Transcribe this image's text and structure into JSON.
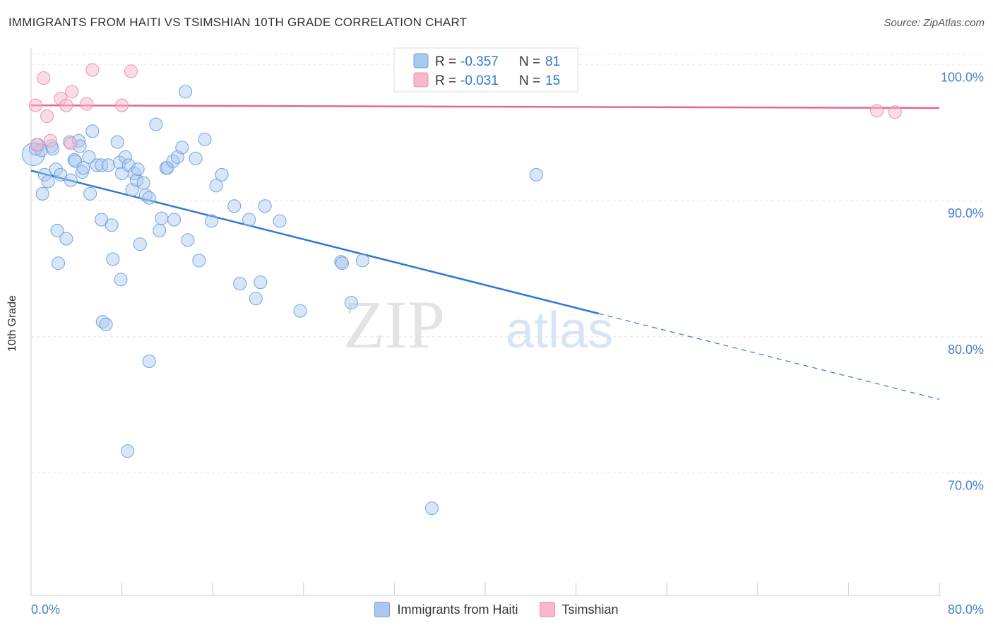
{
  "title": "IMMIGRANTS FROM HAITI VS TSIMSHIAN 10TH GRADE CORRELATION CHART",
  "source": "Source: ZipAtlas.com",
  "watermark": {
    "zip": "ZIP",
    "atlas": "atlas"
  },
  "legend": {
    "r_label": "R =",
    "n_label": "N =",
    "rows": [
      {
        "r": "-0.357",
        "n": "81",
        "color": "#a8c8f0"
      },
      {
        "r": "-0.031",
        "n": "15",
        "color": "#f7b8ca"
      }
    ]
  },
  "bottom_legend": [
    {
      "label": "Immigrants from Haiti",
      "color": "#a8c8f0"
    },
    {
      "label": "Tsimshian",
      "color": "#f7b8ca"
    }
  ],
  "chart_data": {
    "type": "scatter",
    "title": "IMMIGRANTS FROM HAITI VS TSIMSHIAN 10TH GRADE CORRELATION CHART",
    "xlabel": "",
    "ylabel": "10th Grade",
    "xlim": [
      0,
      80
    ],
    "ylim": [
      61,
      101
    ],
    "x_tick_labels": [
      "0.0%",
      "80.0%"
    ],
    "y_ticks": [
      70,
      80,
      90,
      100
    ],
    "y_tick_labels": [
      "70.0%",
      "80.0%",
      "90.0%",
      "100.0%"
    ],
    "grid": true,
    "colors": {
      "blue_point": "#a8c8f0",
      "blue_line": "#2f78d0",
      "pink_point": "#f7b8ca",
      "pink_line": "#e8668e",
      "tick_text": "#4a7fc8"
    },
    "series": [
      {
        "name": "Immigrants from Haiti",
        "points": [
          [
            0.2,
            93.4
          ],
          [
            0.4,
            93.8
          ],
          [
            0.6,
            94.1
          ],
          [
            0.9,
            93.7
          ],
          [
            1.2,
            91.9
          ],
          [
            1.0,
            90.5
          ],
          [
            1.5,
            91.4
          ],
          [
            1.8,
            94.0
          ],
          [
            1.9,
            93.8
          ],
          [
            2.2,
            92.3
          ],
          [
            2.6,
            91.9
          ],
          [
            2.3,
            87.8
          ],
          [
            2.4,
            85.4
          ],
          [
            3.1,
            87.2
          ],
          [
            3.5,
            91.5
          ],
          [
            3.4,
            94.3
          ],
          [
            3.8,
            93.0
          ],
          [
            3.9,
            92.9
          ],
          [
            4.2,
            94.4
          ],
          [
            4.3,
            94.0
          ],
          [
            4.5,
            92.1
          ],
          [
            4.6,
            92.4
          ],
          [
            5.1,
            93.2
          ],
          [
            5.2,
            90.5
          ],
          [
            5.4,
            95.1
          ],
          [
            5.8,
            92.6
          ],
          [
            6.2,
            92.6
          ],
          [
            6.2,
            88.6
          ],
          [
            6.3,
            81.1
          ],
          [
            6.6,
            80.9
          ],
          [
            6.8,
            92.6
          ],
          [
            7.1,
            88.2
          ],
          [
            7.2,
            85.7
          ],
          [
            7.6,
            94.3
          ],
          [
            7.8,
            92.8
          ],
          [
            7.9,
            84.2
          ],
          [
            8.0,
            92.0
          ],
          [
            8.3,
            93.2
          ],
          [
            8.5,
            71.6
          ],
          [
            8.6,
            92.6
          ],
          [
            8.9,
            90.8
          ],
          [
            9.1,
            92.0
          ],
          [
            9.3,
            91.5
          ],
          [
            9.4,
            92.3
          ],
          [
            9.6,
            86.8
          ],
          [
            9.9,
            91.3
          ],
          [
            10.1,
            90.4
          ],
          [
            10.4,
            90.2
          ],
          [
            10.4,
            78.2
          ],
          [
            11.0,
            95.6
          ],
          [
            11.3,
            87.8
          ],
          [
            11.5,
            88.7
          ],
          [
            11.9,
            92.4
          ],
          [
            12.0,
            92.4
          ],
          [
            12.5,
            92.9
          ],
          [
            12.6,
            88.6
          ],
          [
            12.9,
            93.2
          ],
          [
            13.3,
            93.9
          ],
          [
            13.6,
            98.0
          ],
          [
            13.8,
            87.1
          ],
          [
            14.5,
            93.1
          ],
          [
            14.8,
            85.6
          ],
          [
            15.3,
            94.5
          ],
          [
            15.9,
            88.5
          ],
          [
            16.3,
            91.1
          ],
          [
            16.8,
            91.9
          ],
          [
            17.9,
            89.6
          ],
          [
            18.4,
            83.9
          ],
          [
            19.2,
            88.6
          ],
          [
            19.8,
            82.8
          ],
          [
            20.2,
            84.0
          ],
          [
            20.6,
            89.6
          ],
          [
            21.9,
            88.5
          ],
          [
            23.7,
            81.9
          ],
          [
            27.3,
            85.5
          ],
          [
            27.4,
            85.4
          ],
          [
            28.2,
            82.5
          ],
          [
            29.2,
            85.6
          ],
          [
            32.6,
            100.0
          ],
          [
            35.3,
            67.4
          ],
          [
            44.5,
            91.9
          ]
        ]
      },
      {
        "name": "Tsimshian",
        "points": [
          [
            0.4,
            97.0
          ],
          [
            0.5,
            94.1
          ],
          [
            1.1,
            99.0
          ],
          [
            1.4,
            96.2
          ],
          [
            1.7,
            94.4
          ],
          [
            2.6,
            97.5
          ],
          [
            3.1,
            97.0
          ],
          [
            3.6,
            98.0
          ],
          [
            3.5,
            94.2
          ],
          [
            4.9,
            97.1
          ],
          [
            5.4,
            99.6
          ],
          [
            8.0,
            97.0
          ],
          [
            8.8,
            99.5
          ],
          [
            74.5,
            96.6
          ],
          [
            76.1,
            96.5
          ]
        ]
      }
    ],
    "trendlines": [
      {
        "series": "Immigrants from Haiti",
        "x0": 0,
        "y0": 92.2,
        "x1": 50.0,
        "y1": 81.7,
        "x_dash_end": 80.0,
        "y_dash_end": 75.4
      },
      {
        "series": "Tsimshian",
        "x0": 0,
        "y0": 97.0,
        "x1": 80.0,
        "y1": 96.8
      }
    ]
  }
}
